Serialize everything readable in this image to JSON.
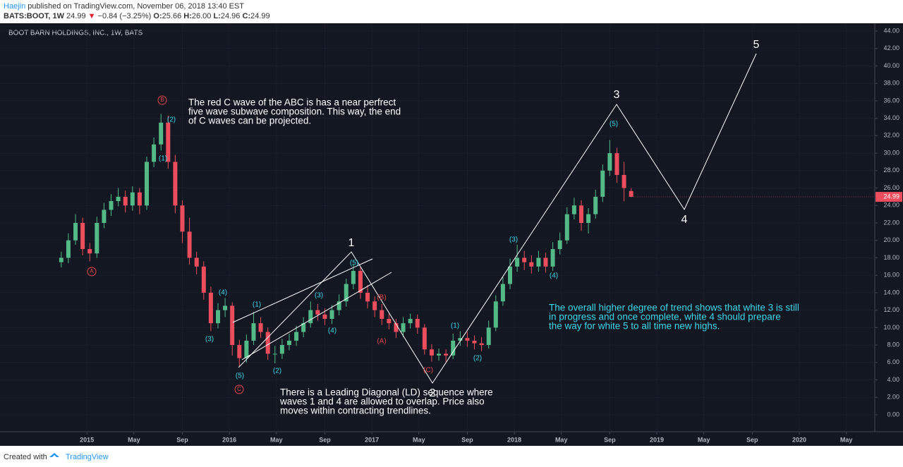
{
  "header": {
    "author": "Haejin",
    "published": "published on TradingView.com, November 06, 2018 13:40 EST",
    "symbol": "BATS:BOOT, 1W",
    "last": "24.99",
    "arrow": "▼",
    "change": "−0.84 (−3.25%)",
    "ohlc": [
      {
        "key": "O:",
        "value": "25.66"
      },
      {
        "key": "H:",
        "value": "26.00"
      },
      {
        "key": "L:",
        "value": "24.96"
      },
      {
        "key": "C:",
        "value": "24.99"
      }
    ]
  },
  "footer": {
    "created": "Created with",
    "brand": "TradingView"
  },
  "chart_data": {
    "type": "candlestick",
    "title": "BOOT BARN HOLDINGS, INC., 1W, BATS",
    "up_color": "#53b987",
    "down_color": "#eb4d5c",
    "grid": true,
    "x": [
      2014.82,
      2014.87,
      2014.92,
      2014.97,
      2015.02,
      2015.07,
      2015.12,
      2015.17,
      2015.22,
      2015.27,
      2015.32,
      2015.37,
      2015.42,
      2015.47,
      2015.52,
      2015.57,
      2015.62,
      2015.67,
      2015.72,
      2015.77,
      2015.82,
      2015.87,
      2015.92,
      2015.97,
      2016.02,
      2016.07,
      2016.12,
      2016.17,
      2016.22,
      2016.27,
      2016.32,
      2016.37,
      2016.42,
      2016.47,
      2016.52,
      2016.57,
      2016.62,
      2016.67,
      2016.72,
      2016.77,
      2016.82,
      2016.87,
      2016.92,
      2016.97,
      2017.02,
      2017.07,
      2017.12,
      2017.17,
      2017.22,
      2017.27,
      2017.32,
      2017.37,
      2017.42,
      2017.47,
      2017.52,
      2017.57,
      2017.62,
      2017.67,
      2017.72,
      2017.77,
      2017.82,
      2017.87,
      2017.92,
      2017.97,
      2018.02,
      2018.07,
      2018.12,
      2018.17,
      2018.22,
      2018.27,
      2018.32,
      2018.37,
      2018.42,
      2018.47,
      2018.52,
      2018.57,
      2018.62,
      2018.67,
      2018.72,
      2018.77,
      2018.82
    ],
    "open": [
      17.5,
      18,
      20,
      22,
      19,
      18.5,
      22,
      23.5,
      24.5,
      25,
      24,
      25.5,
      24,
      29,
      31,
      33.5,
      29,
      24,
      21,
      18,
      17,
      14,
      10.5,
      12,
      12.5,
      8,
      6.5,
      8.5,
      10.5,
      9.5,
      7,
      7,
      8,
      8.5,
      9.5,
      10.5,
      12,
      11.5,
      11,
      12,
      13,
      15,
      16.5,
      14,
      13,
      12,
      11,
      10.5,
      9.5,
      10.5,
      11,
      10,
      7.5,
      6.8,
      7,
      6.8,
      8.5,
      8.8,
      8.5,
      8.2,
      8,
      10,
      13,
      15,
      17,
      18,
      17.5,
      17,
      18,
      17,
      19,
      20,
      23,
      24,
      22,
      23,
      25,
      28,
      30,
      27.5,
      25.66
    ],
    "high": [
      18.7,
      20.8,
      23,
      22.6,
      19.7,
      22.7,
      24.3,
      25.3,
      26,
      25.7,
      26.2,
      26,
      29.6,
      31.8,
      34.5,
      34.3,
      29.8,
      24.6,
      22.6,
      18.7,
      17.6,
      14.7,
      12.8,
      13.4,
      12.9,
      8.6,
      9.2,
      11.8,
      11.2,
      10,
      7.9,
      8.7,
      9.3,
      10.2,
      11.2,
      13,
      12.7,
      12.2,
      12.6,
      13.8,
      15.6,
      17.2,
      17,
      14.9,
      13.6,
      12.7,
      11.6,
      11,
      11.2,
      11.6,
      11.5,
      10.4,
      8.1,
      7.6,
      7.5,
      9.3,
      9.6,
      9.5,
      9.1,
      8.9,
      10.8,
      13.7,
      15.8,
      17.9,
      19.5,
      18.8,
      18.3,
      18.8,
      18.6,
      19.8,
      20.9,
      23.8,
      24.9,
      24.6,
      23.7,
      25.8,
      28.7,
      31.5,
      30.6,
      29,
      26
    ],
    "low": [
      16.9,
      17.4,
      19.5,
      18.3,
      17.6,
      18,
      21.4,
      22.8,
      23.9,
      23.2,
      23.4,
      23,
      23.5,
      28.4,
      30.3,
      28.2,
      23.1,
      19.7,
      17.2,
      16.1,
      13.2,
      9.6,
      9.9,
      11.2,
      6.8,
      5.6,
      6,
      8,
      8.8,
      6.3,
      5.9,
      6.4,
      7.4,
      7.9,
      8.9,
      10,
      10.8,
      10.3,
      10.4,
      11.4,
      12.4,
      14.4,
      13.3,
      12.2,
      11.2,
      10.3,
      9.8,
      8.8,
      8.9,
      9.9,
      9.3,
      6.9,
      6.1,
      6.2,
      6.1,
      6.4,
      7.9,
      7.8,
      7.5,
      7.3,
      7.6,
      9.6,
      12.5,
      14.4,
      16.4,
      16.6,
      16.2,
      16.4,
      16.3,
      16.5,
      18.4,
      19.6,
      22.4,
      21.1,
      20.8,
      22.5,
      24.4,
      27.4,
      26.6,
      24.5,
      24.96
    ],
    "close": [
      18,
      20,
      22,
      19,
      18.5,
      22,
      23.5,
      24.5,
      25,
      24,
      25.5,
      24,
      29,
      31,
      33.5,
      29,
      24,
      21,
      18,
      17,
      14,
      10.5,
      12,
      12.5,
      8,
      6.5,
      8.5,
      10.5,
      9.5,
      7,
      7,
      8,
      8.5,
      9.5,
      10.5,
      12,
      11.5,
      11,
      12,
      13,
      15,
      16.5,
      14,
      13,
      12,
      11,
      10.5,
      9.5,
      10.5,
      11,
      10,
      7.5,
      6.8,
      7,
      6.8,
      8.5,
      8.8,
      8.5,
      8.2,
      8,
      10,
      13,
      15,
      17,
      18,
      17.5,
      17,
      18,
      17,
      19,
      20,
      23,
      24,
      22,
      23,
      25,
      28,
      30,
      27.5,
      26,
      24.99
    ],
    "xlim": [
      2014.39,
      2020.53
    ],
    "xticks": [
      {
        "value": 2015,
        "label": "2015"
      },
      {
        "value": 2015.33,
        "label": "May"
      },
      {
        "value": 2015.67,
        "label": "Sep"
      },
      {
        "value": 2016,
        "label": "2016"
      },
      {
        "value": 2016.33,
        "label": "May"
      },
      {
        "value": 2016.67,
        "label": "Sep"
      },
      {
        "value": 2017,
        "label": "2017"
      },
      {
        "value": 2017.33,
        "label": "May"
      },
      {
        "value": 2017.67,
        "label": "Sep"
      },
      {
        "value": 2018,
        "label": "2018"
      },
      {
        "value": 2018.33,
        "label": "May"
      },
      {
        "value": 2018.67,
        "label": "Sep"
      },
      {
        "value": 2019,
        "label": "2019"
      },
      {
        "value": 2019.33,
        "label": "May"
      },
      {
        "value": 2019.67,
        "label": "Sep"
      },
      {
        "value": 2020,
        "label": "2020"
      },
      {
        "value": 2020.33,
        "label": "May"
      }
    ],
    "ylim": [
      -1.94,
      44.89
    ],
    "yticks": [
      {
        "value": 0,
        "label": "0.00"
      },
      {
        "value": 2,
        "label": "2.00"
      },
      {
        "value": 4,
        "label": "4.00"
      },
      {
        "value": 6,
        "label": "6.00"
      },
      {
        "value": 8,
        "label": "8.00"
      },
      {
        "value": 10,
        "label": "10.00"
      },
      {
        "value": 12,
        "label": "12.00"
      },
      {
        "value": 14,
        "label": "14.00"
      },
      {
        "value": 16,
        "label": "16.00"
      },
      {
        "value": 18,
        "label": "18.00"
      },
      {
        "value": 20,
        "label": "20.00"
      },
      {
        "value": 22,
        "label": "22.00"
      },
      {
        "value": 24,
        "label": "24.00"
      },
      {
        "value": 26,
        "label": "26.00"
      },
      {
        "value": 28,
        "label": "28.00"
      },
      {
        "value": 30,
        "label": "30.00"
      },
      {
        "value": 32,
        "label": "32.00"
      },
      {
        "value": 34,
        "label": "34.00"
      },
      {
        "value": 36,
        "label": "36.00"
      },
      {
        "value": 38,
        "label": "38.00"
      },
      {
        "value": 40,
        "label": "40.00"
      },
      {
        "value": 42,
        "label": "42.00"
      },
      {
        "value": 44,
        "label": "44.00"
      }
    ],
    "wave_numbers": [
      "1",
      "2",
      "3",
      "4",
      "5"
    ],
    "wave_labels": [
      {
        "text": "(2)",
        "color": "#3dd6e8"
      },
      {
        "text": "(1)",
        "color": "#3dd6e8"
      },
      {
        "text": "(4)",
        "color": "#3dd6e8"
      },
      {
        "text": "(3)",
        "color": "#3dd6e8"
      },
      {
        "text": "(5)",
        "color": "#3dd6e8"
      },
      {
        "text": "(1)",
        "color": "#3dd6e8"
      },
      {
        "text": "(2)",
        "color": "#3dd6e8"
      },
      {
        "text": "(3)",
        "color": "#3dd6e8"
      },
      {
        "text": "(4)",
        "color": "#3dd6e8"
      },
      {
        "text": "(5)",
        "color": "#3dd6e8"
      },
      {
        "text": "(1)",
        "color": "#3dd6e8"
      },
      {
        "text": "(2)",
        "color": "#3dd6e8"
      },
      {
        "text": "(3)",
        "color": "#3dd6e8"
      },
      {
        "text": "(4)",
        "color": "#3dd6e8"
      },
      {
        "text": "(5)",
        "color": "#3dd6e8"
      },
      {
        "text": "B",
        "color": "#e0474c",
        "circled": true
      },
      {
        "text": "A",
        "color": "#e0474c",
        "circled": true
      },
      {
        "text": "C",
        "color": "#e0474c",
        "circled": true
      },
      {
        "text": "(B)",
        "color": "#e0474c"
      },
      {
        "text": "(A)",
        "color": "#e0474c"
      },
      {
        "text": "(C)",
        "color": "#e0474c"
      }
    ],
    "notes": [
      {
        "color": "#ffffff",
        "lines": [
          "The red C wave of the ABC is has a near perfrect",
          "five wave subwave composition. This way, the end",
          "of C waves can be projected."
        ]
      },
      {
        "color": "#ffffff",
        "lines": [
          "There is a Leading Diagonal (LD) sequence where",
          "waves 1 and 4 are allowed to overlap. Price also",
          "moves within contracting trendlines."
        ]
      },
      {
        "color": "#3dd6e8",
        "lines": [
          "The overall higher degree of trend shows that white 3 is still",
          "in progress and once complete, white 4 should prepare",
          "the way for white 5 to all time new highs."
        ]
      }
    ]
  }
}
